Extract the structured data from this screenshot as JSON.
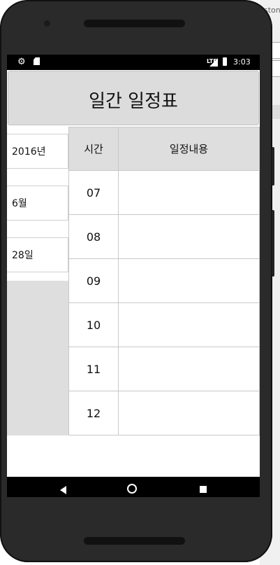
{
  "status_bar": {
    "time": "3:03",
    "network": "LTE",
    "icons": [
      "settings-icon",
      "sd-card-icon",
      "signal-icon",
      "battery-icon"
    ]
  },
  "app": {
    "title": "일간 일정표"
  },
  "date_panel": {
    "year": "2016년",
    "month": "6월",
    "day": "28일"
  },
  "schedule": {
    "headers": {
      "time": "시간",
      "content": "일정내용"
    },
    "rows": [
      {
        "time": "07",
        "content": ""
      },
      {
        "time": "08",
        "content": ""
      },
      {
        "time": "09",
        "content": ""
      },
      {
        "time": "10",
        "content": ""
      },
      {
        "time": "11",
        "content": ""
      },
      {
        "time": "12",
        "content": ""
      }
    ]
  },
  "background": {
    "window_text": "ston"
  },
  "colors": {
    "title_bar_bg": "#dcdcdc",
    "status_bar_bg": "#000000",
    "panel_bg": "#dedede"
  }
}
